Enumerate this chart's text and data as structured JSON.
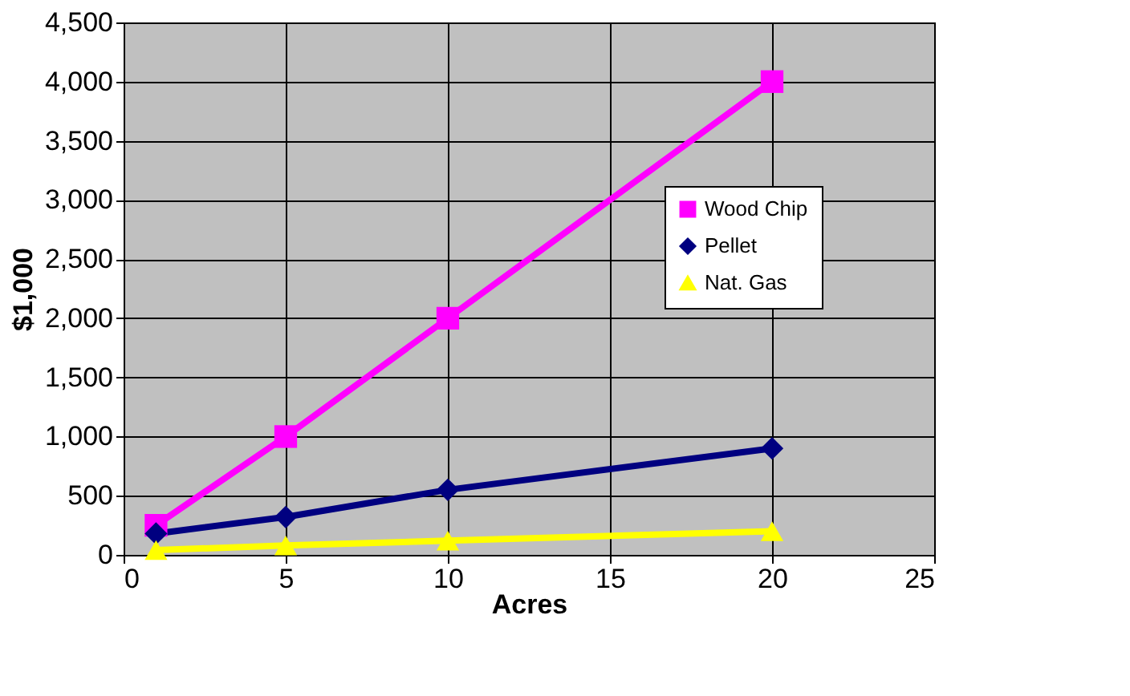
{
  "chart_data": {
    "type": "line",
    "xlabel": "Acres",
    "ylabel": "$1,000",
    "x": [
      1,
      5,
      10,
      20
    ],
    "series": [
      {
        "name": "Wood Chip",
        "color": "#ff00ff",
        "marker": "square",
        "values": [
          250,
          1000,
          2000,
          4000
        ]
      },
      {
        "name": "Pellet",
        "color": "#000080",
        "marker": "diamond",
        "values": [
          180,
          320,
          550,
          900
        ]
      },
      {
        "name": "Nat. Gas",
        "color": "#ffff00",
        "marker": "triangle",
        "values": [
          40,
          80,
          120,
          200
        ]
      }
    ],
    "xlim": [
      0,
      25
    ],
    "xticks": [
      0,
      5,
      10,
      15,
      20,
      25
    ],
    "ylim": [
      0,
      4500
    ],
    "yticks": [
      {
        "value": 0,
        "label": "0"
      },
      {
        "value": 500,
        "label": "500"
      },
      {
        "value": 1000,
        "label": "1,000"
      },
      {
        "value": 1500,
        "label": "1,500"
      },
      {
        "value": 2000,
        "label": "2,000"
      },
      {
        "value": 2500,
        "label": "2,500"
      },
      {
        "value": 3000,
        "label": "3,000"
      },
      {
        "value": 3500,
        "label": "3,500"
      },
      {
        "value": 4000,
        "label": "4,000"
      },
      {
        "value": 4500,
        "label": "4,500"
      }
    ],
    "grid": true,
    "legend": "right",
    "line_style": "solid"
  }
}
